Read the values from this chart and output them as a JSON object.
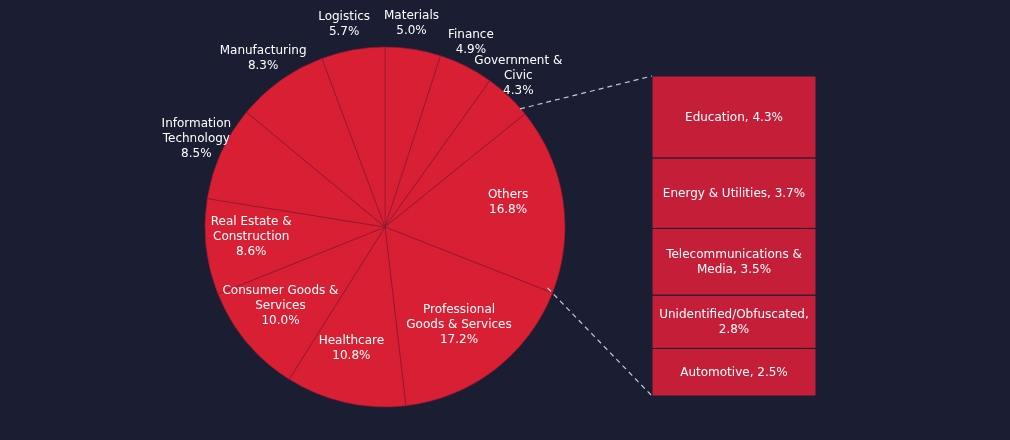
{
  "chart_data": [
    {
      "type": "pie",
      "categories": [
        "Materials",
        "Finance",
        "Government & Civic",
        "Others",
        "Professional Goods & Services",
        "Healthcare",
        "Consumer Goods & Services",
        "Real Estate & Construction",
        "Information Technology",
        "Manufacturing",
        "Logistics"
      ],
      "values": [
        5.0,
        4.9,
        4.3,
        16.8,
        17.2,
        10.8,
        10.0,
        8.6,
        8.5,
        8.3,
        5.7
      ],
      "colors": [
        "#d81f33",
        "#d81f33",
        "#d81f33",
        "#d81f33",
        "#d81f33",
        "#d81f33",
        "#d81f33",
        "#d81f33",
        "#d81f33",
        "#d81f33",
        "#d81f33"
      ],
      "value_labels": [
        "5.0%",
        "4.9%",
        "4.3%",
        "16.8%",
        "17.2%",
        "10.8%",
        "10.0%",
        "8.6%",
        "8.5%",
        "8.3%",
        "5.7%"
      ]
    },
    {
      "type": "bar",
      "stacked": true,
      "categories": [
        null
      ],
      "tick_labels": false,
      "series": [
        {
          "color": "#c41e38",
          "values": [
            2.5
          ],
          "value_labels": [
            "Automotive, 2.5%"
          ]
        },
        {
          "color": "#c41e38",
          "values": [
            2.8
          ],
          "value_labels": [
            "Unidentified/Obfuscated, 2.8%"
          ]
        },
        {
          "color": "#c41e38",
          "values": [
            3.5
          ],
          "value_labels": [
            "Telecommunications & Media, 3.5%"
          ]
        },
        {
          "color": "#c41e38",
          "values": [
            3.7
          ],
          "value_labels": [
            "Energy & Utilities, 3.7%"
          ]
        },
        {
          "color": "#c41e38",
          "values": [
            4.3
          ],
          "value_labels": [
            "Education, 4.3%"
          ]
        }
      ]
    }
  ]
}
